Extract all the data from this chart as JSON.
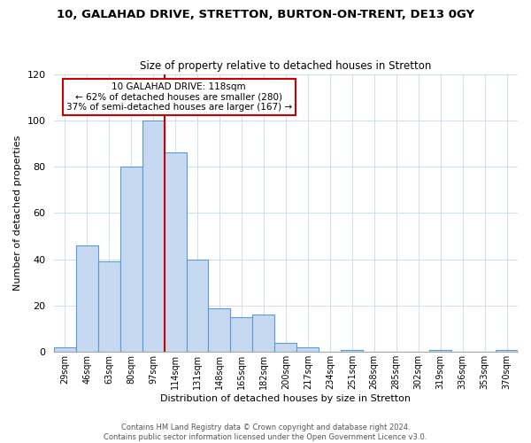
{
  "title": "10, GALAHAD DRIVE, STRETTON, BURTON-ON-TRENT, DE13 0GY",
  "subtitle": "Size of property relative to detached houses in Stretton",
  "xlabel": "Distribution of detached houses by size in Stretton",
  "ylabel": "Number of detached properties",
  "bar_labels": [
    "29sqm",
    "46sqm",
    "63sqm",
    "80sqm",
    "97sqm",
    "114sqm",
    "131sqm",
    "148sqm",
    "165sqm",
    "182sqm",
    "200sqm",
    "217sqm",
    "234sqm",
    "251sqm",
    "268sqm",
    "285sqm",
    "302sqm",
    "319sqm",
    "336sqm",
    "353sqm",
    "370sqm"
  ],
  "bar_values": [
    2,
    46,
    39,
    80,
    100,
    86,
    40,
    19,
    15,
    16,
    4,
    2,
    0,
    1,
    0,
    0,
    0,
    1,
    0,
    0,
    1
  ],
  "bar_color": "#c6d9f0",
  "bar_edge_color": "#5b9bd5",
  "highlight_line_color": "#cc0000",
  "highlight_line_index": 5,
  "annotation_title": "10 GALAHAD DRIVE: 118sqm",
  "annotation_line1": "← 62% of detached houses are smaller (280)",
  "annotation_line2": "37% of semi-detached houses are larger (167) →",
  "annotation_box_edge_color": "#cc0000",
  "ylim": [
    0,
    120
  ],
  "yticks": [
    0,
    20,
    40,
    60,
    80,
    100,
    120
  ],
  "footer_line1": "Contains HM Land Registry data © Crown copyright and database right 2024.",
  "footer_line2": "Contains public sector information licensed under the Open Government Licence v3.0.",
  "fig_width": 6.0,
  "fig_height": 5.0,
  "dpi": 100
}
